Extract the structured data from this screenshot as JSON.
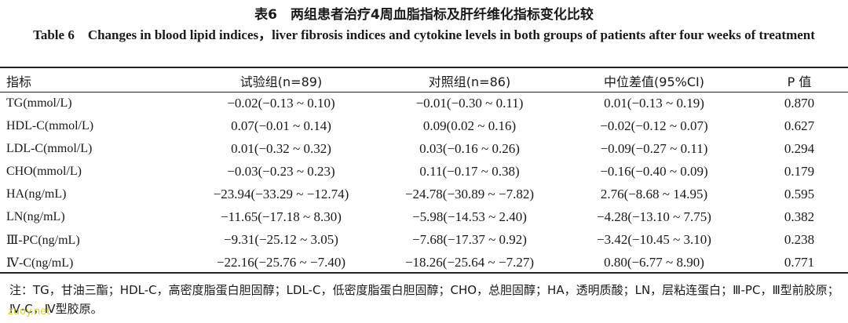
{
  "title_cn": "表6　两组患者治疗4周血脂指标及肝纤维化指标变化比较",
  "title_en": "Table 6　Changes in blood lipid indices，liver fibrosis indices and cytokine levels in both groups of patients after four weeks of treatment",
  "headers": [
    "指标",
    "试验组(n=89)",
    "对照组(n=86)",
    "中位差值(95%CI)",
    "P 值"
  ],
  "rows": [
    [
      "TG(mmol/L)",
      "−0.02(−0.13 ~ 0.10)",
      "−0.01(−0.30 ~ 0.11)",
      "0.01(−0.13 ~ 0.19)",
      "0.870"
    ],
    [
      "HDL-C(mmol/L)",
      "0.07(−0.01 ~ 0.14)",
      "0.09(0.02 ~ 0.16)",
      "−0.02(−0.12 ~ 0.07)",
      "0.627"
    ],
    [
      "LDL-C(mmol/L)",
      "0.01(−0.32 ~ 0.32)",
      "0.03(−0.16 ~ 0.26)",
      "−0.09(−0.27 ~ 0.11)",
      "0.294"
    ],
    [
      "CHO(mmol/L)",
      "−0.03(−0.23 ~ 0.23)",
      "0.11(−0.17 ~ 0.38)",
      "−0.16(−0.40 ~ 0.09)",
      "0.179"
    ],
    [
      "HA(ng/mL)",
      "−23.94(−33.29 ~ −12.74)",
      "−24.78(−30.89 ~ −7.82)",
      "2.76(−8.68 ~ 14.95)",
      "0.595"
    ],
    [
      "LN(ng/mL)",
      "−11.65(−17.18 ~ 8.30)",
      "−5.98(−14.53 ~ 2.40)",
      "−4.28(−13.10 ~ 7.75)",
      "0.382"
    ],
    [
      "Ⅲ-PC(ng/mL)",
      "−9.31(−25.12 ~ 3.05)",
      "−7.68(−17.37 ~ 0.92)",
      "−3.42(−10.45 ~ 3.10)",
      "0.238"
    ],
    [
      "Ⅳ-C(ng/mL)",
      "−22.16(−25.76 ~ −7.40)",
      "−18.26(−25.64 ~ −7.27)",
      "0.80(−6.77 ~ 8.90)",
      "0.771"
    ]
  ],
  "note": "注：TG，甘油三酯；HDL-C，高密度脂蛋白胆固醇；LDL-C，低密度脂蛋白胆固醇；CHO，总胆固醇；HA，透明质酸；LN，层粘连蛋白；Ⅲ-PC，Ⅲ型前胶原；Ⅳ-C，Ⅳ型胶原。",
  "watermark": "zuoy.net",
  "colors": {
    "text": "#1a1a1a",
    "rule": "#222222",
    "watermark": "#d6cf3a"
  }
}
